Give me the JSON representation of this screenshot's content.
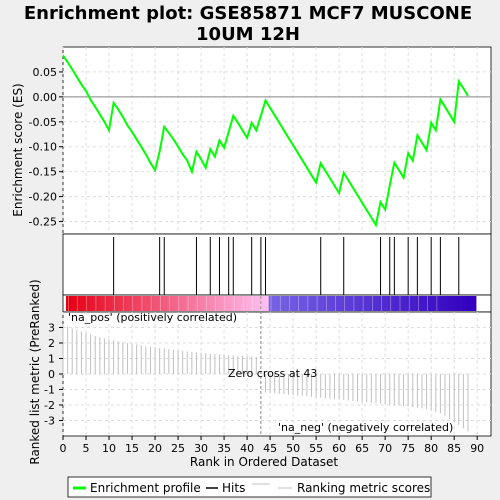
{
  "chart_data": [
    {
      "type": "line",
      "title_lines": [
        "Enrichment plot: GSE85871 MCF7 MUSCONE",
        "10UM 12H"
      ],
      "ylabel": "Enrichment score (ES)",
      "ylim": [
        -0.275,
        0.1
      ],
      "yticks": [
        "0.05",
        "0.00",
        "-0.05",
        "-0.10",
        "-0.15",
        "-0.20",
        "-0.25"
      ],
      "grid": true,
      "line_color": "#00ff00",
      "series": [
        {
          "name": "Enrichment profile",
          "x": [
            0,
            1,
            2,
            3,
            4,
            5,
            6,
            7,
            8,
            9,
            10,
            11,
            12,
            13,
            14,
            15,
            16,
            17,
            18,
            19,
            20,
            21,
            22,
            23,
            24,
            25,
            26,
            27,
            28,
            29,
            30,
            31,
            32,
            33,
            34,
            35,
            36,
            37,
            38,
            39,
            40,
            41,
            42,
            43,
            44,
            45,
            46,
            47,
            48,
            49,
            50,
            51,
            52,
            53,
            54,
            55,
            56,
            57,
            58,
            59,
            60,
            61,
            62,
            63,
            64,
            65,
            66,
            67,
            68,
            69,
            70,
            71,
            72,
            73,
            74,
            75,
            76,
            77,
            78,
            79,
            80,
            81,
            82,
            83,
            84,
            85,
            86,
            87,
            88
          ],
          "values": [
            0.083,
            0.07,
            0.055,
            0.04,
            0.025,
            0.012,
            -0.006,
            -0.02,
            -0.035,
            -0.05,
            -0.067,
            -0.012,
            -0.025,
            -0.04,
            -0.057,
            -0.07,
            -0.085,
            -0.1,
            -0.115,
            -0.132,
            -0.147,
            -0.11,
            -0.06,
            -0.072,
            -0.085,
            -0.1,
            -0.115,
            -0.128,
            -0.15,
            -0.11,
            -0.125,
            -0.142,
            -0.105,
            -0.12,
            -0.087,
            -0.102,
            -0.07,
            -0.038,
            -0.052,
            -0.067,
            -0.082,
            -0.052,
            -0.067,
            -0.038,
            -0.007,
            -0.022,
            -0.037,
            -0.052,
            -0.067,
            -0.082,
            -0.097,
            -0.112,
            -0.127,
            -0.142,
            -0.157,
            -0.172,
            -0.133,
            -0.148,
            -0.163,
            -0.178,
            -0.193,
            -0.152,
            -0.167,
            -0.182,
            -0.197,
            -0.212,
            -0.227,
            -0.242,
            -0.257,
            -0.211,
            -0.226,
            -0.177,
            -0.132,
            -0.147,
            -0.162,
            -0.113,
            -0.128,
            -0.077,
            -0.092,
            -0.107,
            -0.052,
            -0.067,
            -0.005,
            -0.02,
            -0.035,
            -0.05,
            0.031,
            0.017,
            0.002
          ]
        }
      ]
    },
    {
      "type": "hits",
      "series_name": "Hits",
      "hits": [
        11,
        21,
        22,
        29,
        32,
        34,
        36,
        37,
        41,
        43,
        44,
        56,
        61,
        69,
        71,
        72,
        75,
        77,
        80,
        82,
        86
      ]
    },
    {
      "type": "heatmap",
      "labels": [
        "'na_pos' (positively correlated)",
        "'na_neg' (negatively correlated)"
      ]
    },
    {
      "type": "bar",
      "xlabel": "Rank in Ordered Dataset",
      "ylabel": "Ranked list metric (PreRanked)",
      "ylim": [
        -4,
        4
      ],
      "yticks": [
        "3",
        "2",
        "1",
        "0",
        "-1",
        "-2",
        "-3"
      ],
      "xlim": [
        0,
        93
      ],
      "xticks": [
        "0",
        "5",
        "10",
        "15",
        "20",
        "25",
        "30",
        "35",
        "40",
        "45",
        "50",
        "55",
        "60",
        "65",
        "70",
        "75",
        "80",
        "85",
        "90"
      ],
      "x": [
        0,
        1,
        2,
        3,
        4,
        5,
        6,
        7,
        8,
        9,
        10,
        11,
        12,
        13,
        14,
        15,
        16,
        17,
        18,
        19,
        20,
        21,
        22,
        23,
        24,
        25,
        26,
        27,
        28,
        29,
        30,
        31,
        32,
        33,
        34,
        35,
        36,
        37,
        38,
        39,
        40,
        41,
        42,
        43,
        44,
        45,
        46,
        47,
        48,
        49,
        50,
        51,
        52,
        53,
        54,
        55,
        56,
        57,
        58,
        59,
        60,
        61,
        62,
        63,
        64,
        65,
        66,
        67,
        68,
        69,
        70,
        71,
        72,
        73,
        74,
        75,
        76,
        77,
        78,
        79,
        80,
        81,
        82,
        83,
        84,
        85,
        86,
        87,
        88
      ],
      "values": [
        3.2,
        3.05,
        2.95,
        2.85,
        2.75,
        2.65,
        2.55,
        2.45,
        2.38,
        2.3,
        2.23,
        2.17,
        2.1,
        2.05,
        2.0,
        1.95,
        1.9,
        1.85,
        1.8,
        1.76,
        1.72,
        1.68,
        1.64,
        1.6,
        1.56,
        1.52,
        1.49,
        1.46,
        1.43,
        1.4,
        1.37,
        1.34,
        1.31,
        1.28,
        1.26,
        1.24,
        1.22,
        1.2,
        1.18,
        1.16,
        1.14,
        1.12,
        1.1,
        0.02,
        -1.2,
        -1.22,
        -1.25,
        -1.28,
        -1.3,
        -1.33,
        -1.36,
        -1.38,
        -1.41,
        -1.44,
        -1.47,
        -1.5,
        -1.53,
        -1.56,
        -1.59,
        -1.62,
        -1.65,
        -1.68,
        -1.71,
        -1.74,
        -1.77,
        -1.8,
        -1.83,
        -1.86,
        -1.89,
        -1.92,
        -1.95,
        -1.98,
        -2.01,
        -2.04,
        -2.07,
        -2.1,
        -2.13,
        -2.17,
        -2.22,
        -2.28,
        -2.35,
        -2.45,
        -2.55,
        -2.7,
        -2.9,
        -3.1,
        -3.3,
        -3.5,
        -3.7
      ],
      "zero_cross_label": "Zero cross at 43",
      "zero_cross": 43
    }
  ],
  "legend": {
    "items": [
      {
        "label": "Enrichment profile",
        "color": "#00ff00"
      },
      {
        "label": "Hits",
        "color": "#000000"
      },
      {
        "label": "Ranking metric scores",
        "color": "#c0c0c0"
      }
    ]
  }
}
